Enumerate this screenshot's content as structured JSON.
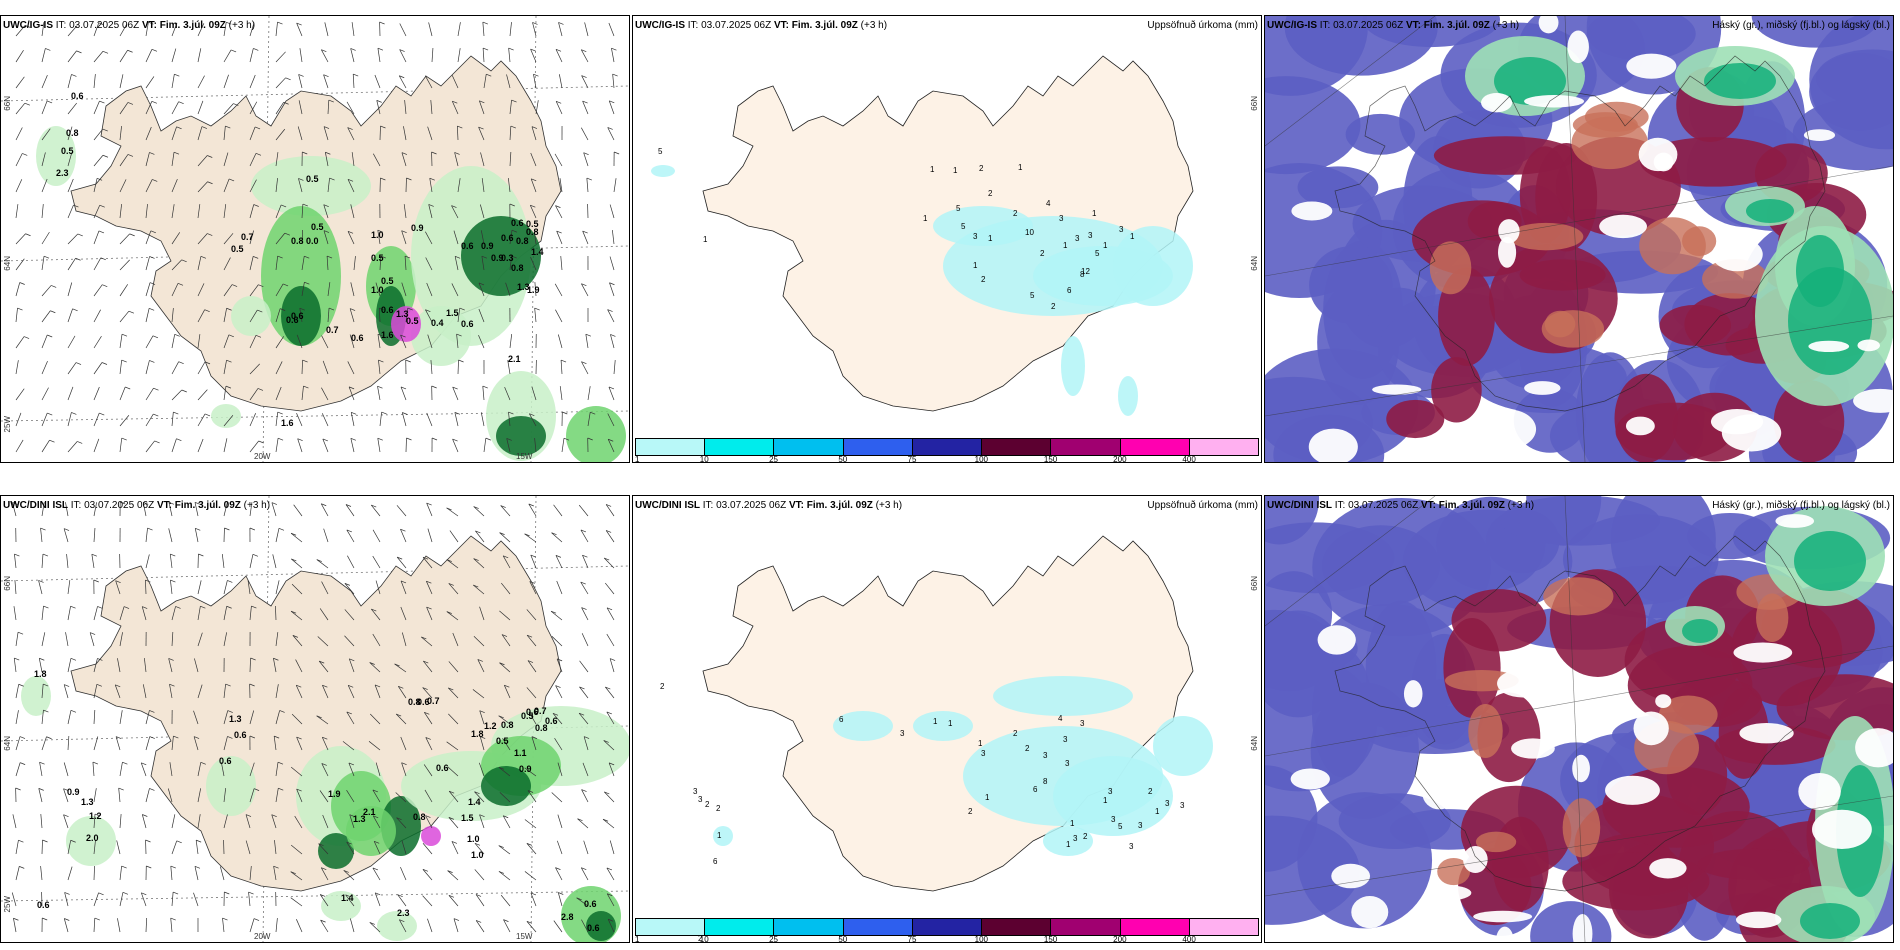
{
  "rows": [
    {
      "id": "ig-is",
      "panels": [
        {
          "type": "wind",
          "model": "UWC/IG-IS",
          "it_label": "IT:",
          "it_value": "03.07.2025 06Z",
          "vt_label": "VT:",
          "vt_value": "Fim. 3.júl. 09Z",
          "lead": "(+3 h)",
          "ticks": {
            "lon_20": "20W",
            "lon_15": "15W",
            "lon_25": "25W",
            "lat_66": "66N",
            "lat_64": "64N"
          },
          "labels": [
            "0.6",
            "0.8",
            "0.5",
            "2.3",
            "0.5",
            "0.7",
            "0.5",
            "0.5",
            "0.8",
            "0.0",
            "1.0",
            "0.5",
            "0.6",
            "0.9",
            "1.0",
            "0.5",
            "1.3",
            "0.7",
            "0.6",
            "0.6",
            "0.5",
            "0.8",
            "1.4",
            "0.8",
            "1.3",
            "1.9",
            "0.9",
            "0.6",
            "0.6",
            "0.8",
            "0.3",
            "1.5",
            "0.5",
            "0.4",
            "0.6",
            "1.6",
            "1.6",
            "0.9",
            "0.6",
            "2.1",
            "0.6"
          ]
        },
        {
          "type": "precip",
          "model": "UWC/IG-IS",
          "it_label": "IT:",
          "it_value": "03.07.2025 06Z",
          "vt_label": "VT:",
          "vt_value": "Fim. 3.júl. 09Z",
          "lead": "(+3 h)",
          "right_title": "Uppsöfnuð úrkoma (mm)",
          "ticks": {
            "lat_66": "66N",
            "lat_64": "64N"
          },
          "numbers": [
            "5",
            "1",
            "1",
            "2",
            "1",
            "1",
            "2",
            "1",
            "5",
            "5",
            "3",
            "1",
            "2",
            "4",
            "3",
            "1",
            "2",
            "1",
            "2",
            "10",
            "6",
            "8",
            "5",
            "2",
            "3",
            "3",
            "1",
            "5",
            "1",
            "3",
            "1",
            "12"
          ]
        },
        {
          "type": "cloud",
          "model": "UWC/IG-IS",
          "it_label": "IT:",
          "it_value": "03.07.2025 06Z",
          "vt_label": "VT:",
          "vt_value": "Fim. 3.júl. 09Z",
          "lead": "(+3 h)",
          "right_title": "Háský (gr.), miðský (fj.bl.) og lágský (bl.)"
        }
      ]
    },
    {
      "id": "dini-isl",
      "panels": [
        {
          "type": "wind",
          "model": "UWC/DINI ISL",
          "it_label": "IT:",
          "it_value": "03.07.2025 06Z",
          "vt_label": "VT:",
          "vt_value": "Fim. 3.júl. 09Z",
          "lead": "(+3 h)",
          "ticks": {
            "lon_20": "20W",
            "lon_15": "15W",
            "lon_25": "25W",
            "lat_66": "66N",
            "lat_64": "64N"
          },
          "labels": [
            "1.8",
            "0.6",
            "1.3",
            "0.6",
            "0.9",
            "1.3",
            "1.2",
            "2.0",
            "0.6",
            "0.8",
            "0.7",
            "1.8",
            "0.6",
            "1.9",
            "1.3",
            "2.1",
            "0.8",
            "1.5",
            "1.0",
            "0.6",
            "0.5",
            "1.2",
            "0.8",
            "0.5",
            "0.6",
            "0.7",
            "0.6",
            "0.8",
            "0.9",
            "1.1",
            "1.4",
            "1.0",
            "1.4",
            "2.3",
            "2.8",
            "0.6",
            "0.6"
          ]
        },
        {
          "type": "precip",
          "model": "UWC/DINI ISL",
          "it_label": "IT:",
          "it_value": "03.07.2025 06Z",
          "vt_label": "VT:",
          "vt_value": "Fim. 3.júl. 09Z",
          "lead": "(+3 h)",
          "right_title": "Uppsöfnuð úrkoma (mm)",
          "ticks": {
            "lat_66": "66N",
            "lat_64": "64N"
          },
          "numbers": [
            "2",
            "3",
            "3",
            "2",
            "1",
            "6",
            "2",
            "2",
            "6",
            "3",
            "1",
            "1",
            "3",
            "2",
            "1",
            "2",
            "3",
            "4",
            "3",
            "3",
            "3",
            "6",
            "8",
            "1",
            "2",
            "1",
            "2",
            "3",
            "1",
            "1",
            "3",
            "3",
            "5",
            "3",
            "3",
            "2",
            "1",
            "3",
            "3"
          ]
        },
        {
          "type": "cloud",
          "model": "UWC/DINI ISL",
          "it_label": "IT:",
          "it_value": "03.07.2025 06Z",
          "vt_label": "VT:",
          "vt_value": "Fim. 3.júl. 09Z",
          "lead": "(+3 h)",
          "right_title": "Háský (gr.), miðský (fj.bl.) og lágský (bl.)"
        }
      ]
    }
  ],
  "colorbar": {
    "colors": [
      "#b8f8f8",
      "#00ecec",
      "#00bfef",
      "#2e5fee",
      "#2323a3",
      "#5c0030",
      "#a00070",
      "#ff00b0",
      "#ffb0f0"
    ],
    "labels": [
      "1",
      "10",
      "25",
      "50",
      "75",
      "100",
      "150",
      "200",
      "400"
    ]
  },
  "palette": {
    "land": "#f3e6d6",
    "precip_land": "#fdf2e6",
    "precip_cyan": "#b2f5f7",
    "green_light": "#c8f0c8",
    "green_mid": "#6fd36f",
    "green_dark": "#0b6d2b",
    "magenta": "#d94ad9",
    "cloud_low": "#5c5ec3",
    "cloud_mid": "#8e1c45",
    "cloud_orange": "#c8705a",
    "cloud_high": "#14b07a",
    "cloud_high_light": "#9ee0b6"
  }
}
